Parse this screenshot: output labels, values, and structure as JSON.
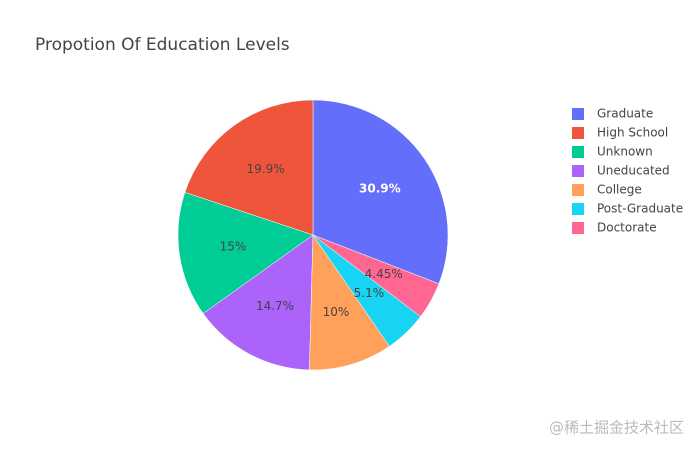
{
  "chart_data": {
    "type": "pie",
    "title": "Propotion Of Education Levels",
    "categories": [
      "Graduate",
      "High School",
      "Unknown",
      "Uneducated",
      "College",
      "Post-Graduate",
      "Doctorate"
    ],
    "values": [
      30.9,
      19.9,
      15,
      14.7,
      10,
      5.1,
      4.45
    ],
    "value_labels": [
      "30.9%",
      "19.9%",
      "15%",
      "14.7%",
      "10%",
      "5.1%",
      "4.45%"
    ],
    "colors": [
      "#636efa",
      "#ef553b",
      "#00cc96",
      "#ab63fa",
      "#ffa15a",
      "#19d3f3",
      "#ff6692"
    ],
    "legend": "right"
  },
  "watermark": "@稀土掘金技术社区"
}
